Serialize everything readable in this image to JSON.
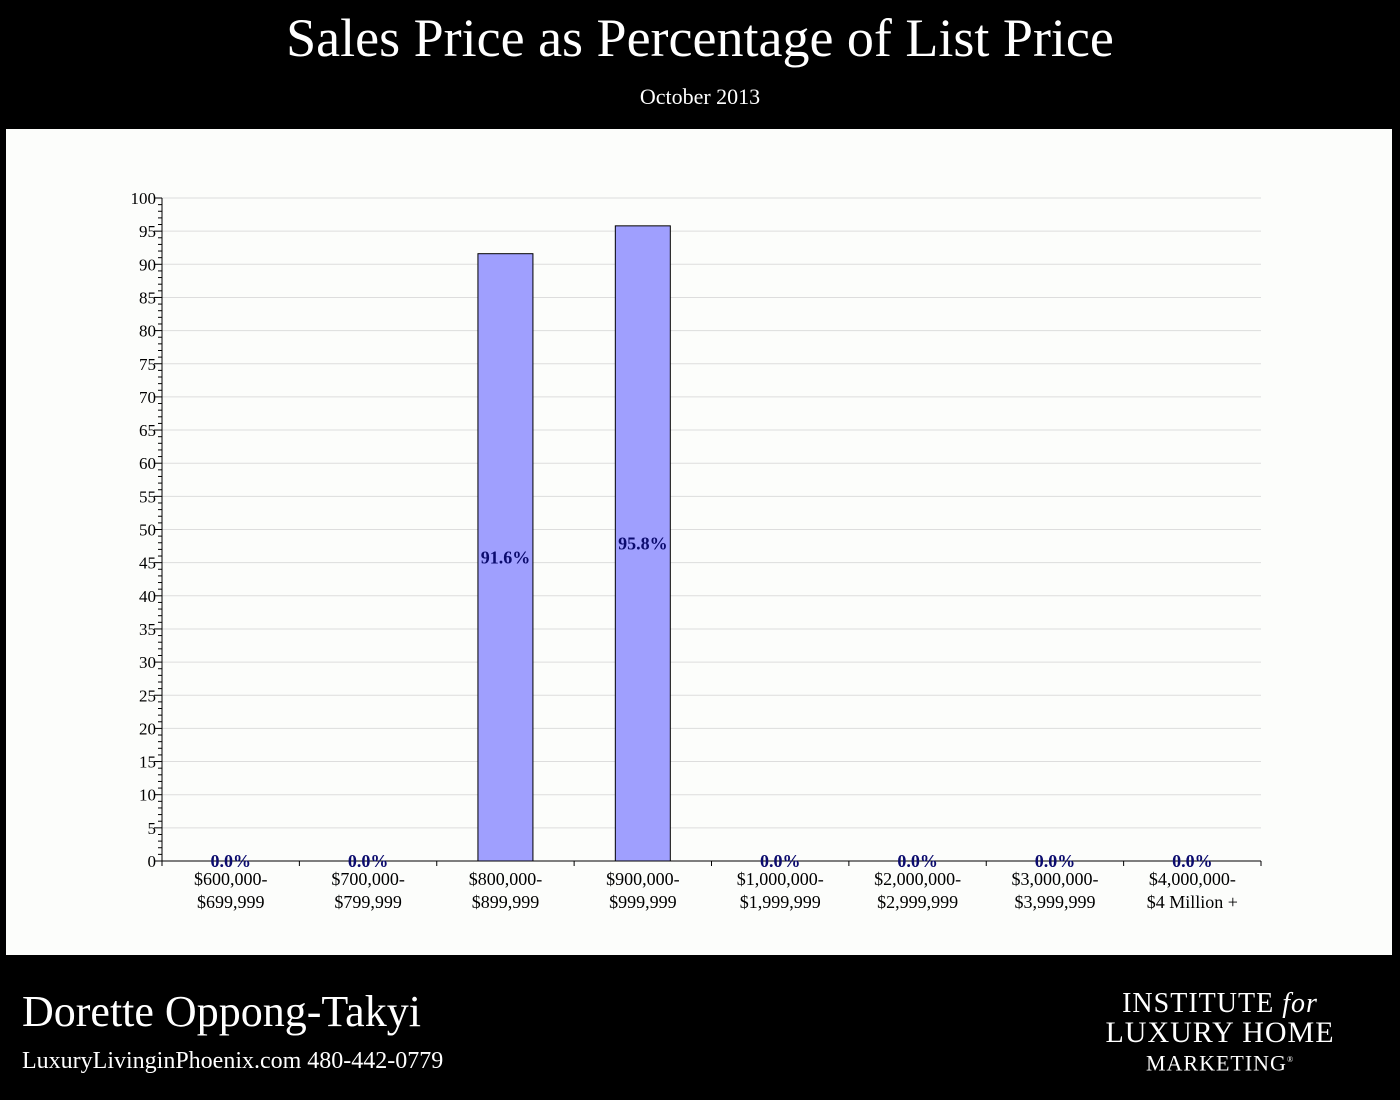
{
  "header": {
    "title": "Sales Price as Percentage of List Price",
    "subtitle": "October 2013"
  },
  "footer": {
    "agent_name": "Dorette Oppong-Takyi",
    "contact": "LuxuryLivinginPhoenix.com 480-442-0779",
    "logo": {
      "line1_main": "INSTITUTE",
      "line1_italic": "for",
      "line2": "LUXURY HOME",
      "line3": "MARKETING",
      "registered": "®"
    }
  },
  "colors": {
    "bar_fill": "#9f9ffe",
    "bar_stroke": "#000000",
    "label_color": "#0b0b6e",
    "grid": "#dddddd",
    "panel_bg": "#fcfdfb"
  },
  "chart_data": {
    "type": "bar",
    "categories": [
      [
        "$600,000-",
        "$699,999"
      ],
      [
        "$700,000-",
        "$799,999"
      ],
      [
        "$800,000-",
        "$899,999"
      ],
      [
        "$900,000-",
        "$999,999"
      ],
      [
        "$1,000,000-",
        "$1,999,999"
      ],
      [
        "$2,000,000-",
        "$2,999,999"
      ],
      [
        "$3,000,000-",
        "$3,999,999"
      ],
      [
        "$4,000,000-",
        "$4 Million +"
      ]
    ],
    "values": [
      0,
      0,
      91.6,
      95.8,
      0,
      0,
      0,
      0
    ],
    "data_labels": [
      "0.0%",
      "0.0%",
      "91.6%",
      "95.8%",
      "0.0%",
      "0.0%",
      "0.0%",
      "0.0%"
    ],
    "ylim": [
      0,
      100
    ],
    "y_major_step": 5,
    "y_minor_step": 1,
    "grid": true,
    "legend": "none"
  }
}
